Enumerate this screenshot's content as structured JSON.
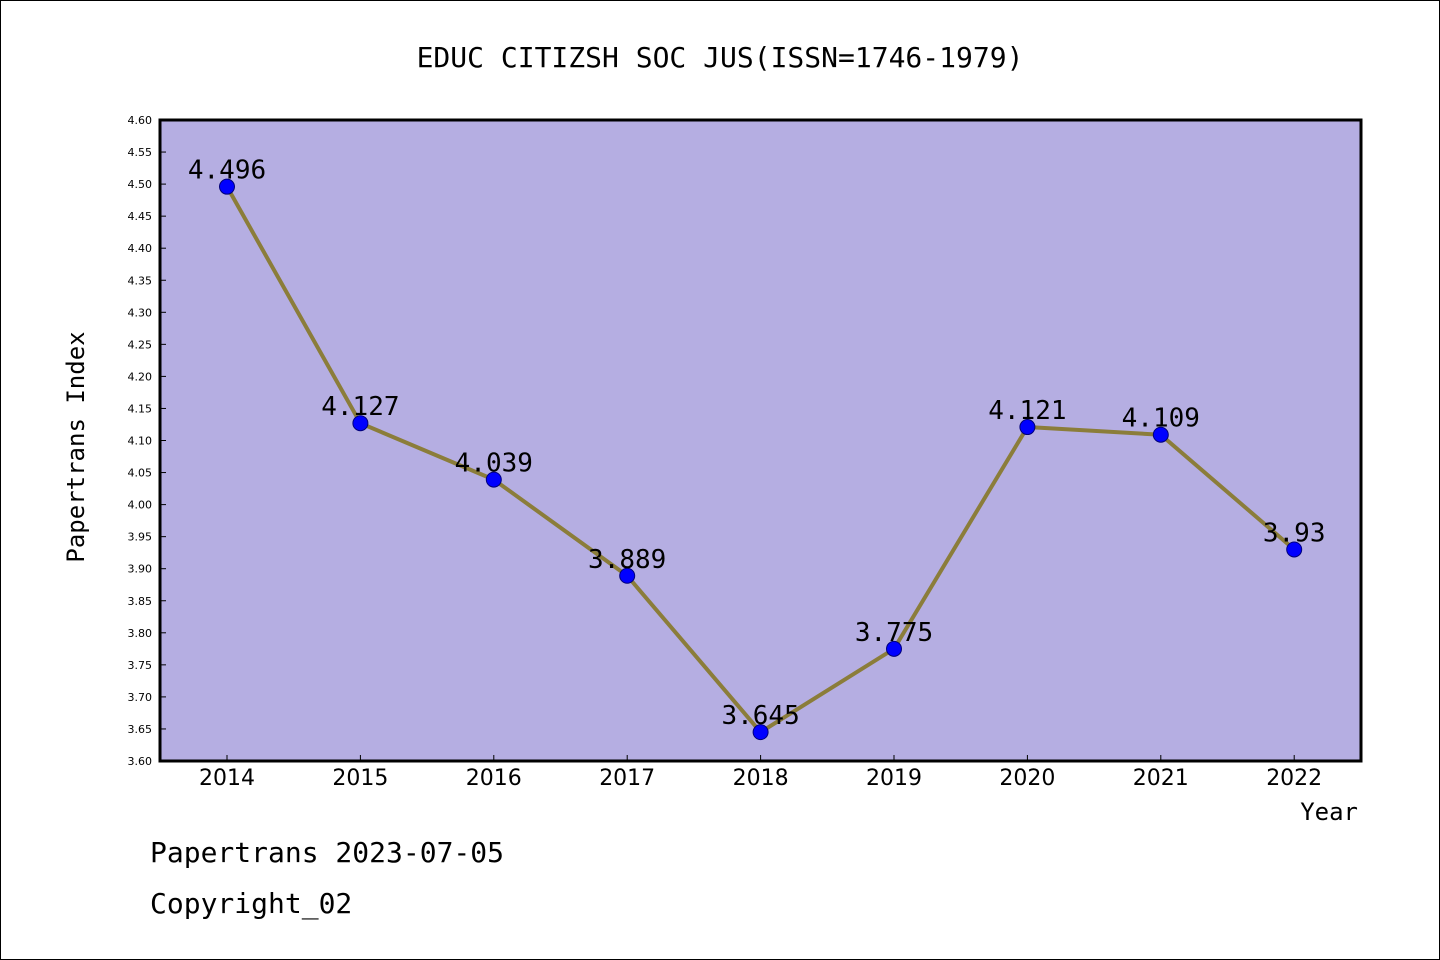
{
  "chart_data": {
    "type": "line",
    "title": "EDUC CITIZSH SOC JUS(ISSN=1746-1979)",
    "xlabel": "Year",
    "ylabel": "Papertrans Index",
    "categories": [
      "2014",
      "2015",
      "2016",
      "2017",
      "2018",
      "2019",
      "2020",
      "2021",
      "2022"
    ],
    "series": [
      {
        "values": [
          4.496,
          4.127,
          4.039,
          3.889,
          3.645,
          3.775,
          4.121,
          4.109,
          3.93
        ],
        "labels": [
          "4.496",
          "4.127",
          "4.039",
          "3.889",
          "3.645",
          "3.775",
          "4.121",
          "4.109",
          "3.93"
        ]
      }
    ],
    "ylim": [
      3.6,
      4.6
    ],
    "yticks": [
      "3.60",
      "3.65",
      "3.70",
      "3.75",
      "3.80",
      "3.85",
      "3.90",
      "3.95",
      "4.00",
      "4.05",
      "4.10",
      "4.15",
      "4.20",
      "4.25",
      "4.30",
      "4.35",
      "4.40",
      "4.45",
      "4.50",
      "4.55",
      "4.60"
    ],
    "grid": false,
    "colors": {
      "plot_background": "#b5aee2",
      "line": "#8b7d3a",
      "marker": "#0000ff"
    }
  },
  "footer": {
    "line1": "Papertrans 2023-07-05",
    "line2": "Copyright_02"
  }
}
